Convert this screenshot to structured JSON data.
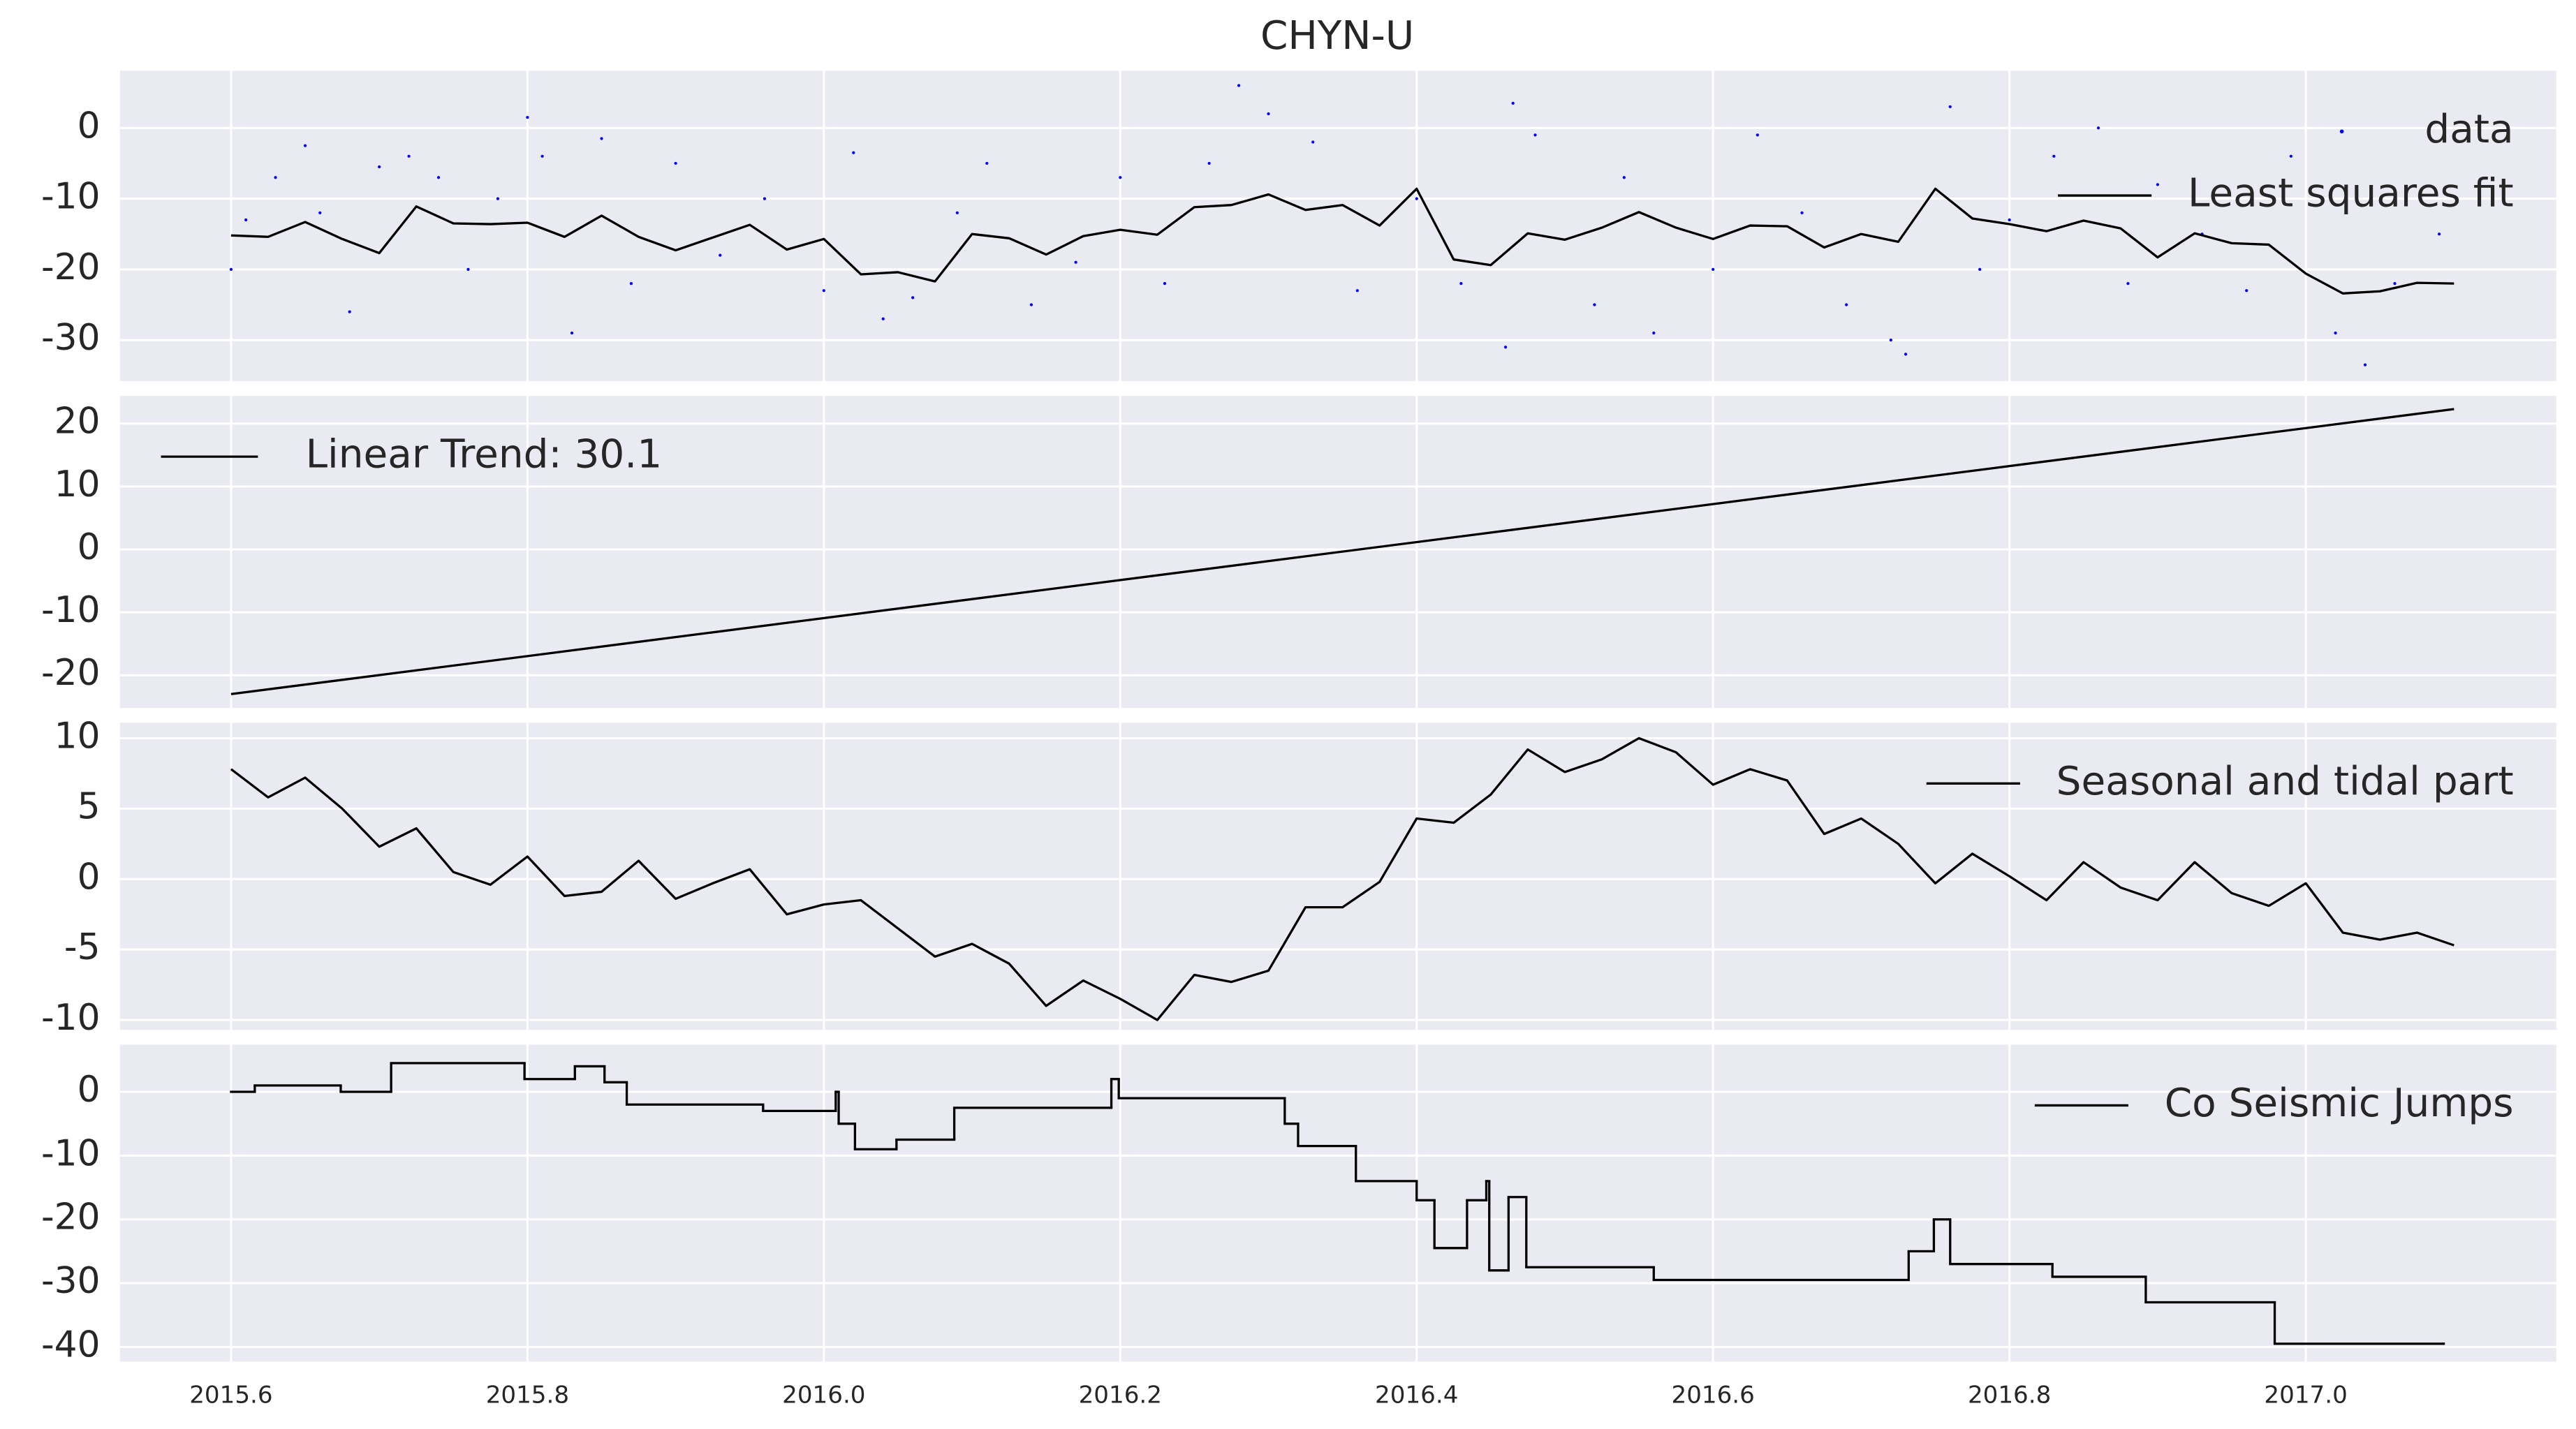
{
  "chart_data": [
    {
      "type": "line",
      "title": "CHYN-U",
      "ylim": [
        -35.8,
        8.1
      ],
      "yticks": [
        -30,
        -20,
        -10,
        0
      ],
      "grid": true,
      "legend": "upper right",
      "series": [
        {
          "name": "data",
          "color": "#0000ff",
          "style": "points",
          "x": [
            2015.6,
            2015.61,
            2015.63,
            2015.65,
            2015.66,
            2015.68,
            2015.7,
            2015.72,
            2015.74,
            2015.76,
            2015.78,
            2015.8,
            2015.81,
            2015.83,
            2015.85,
            2015.87,
            2015.9,
            2015.93,
            2015.96,
            2016.0,
            2016.02,
            2016.04,
            2016.06,
            2016.09,
            2016.11,
            2016.14,
            2016.17,
            2016.2,
            2016.23,
            2016.26,
            2016.28,
            2016.3,
            2016.33,
            2016.36,
            2016.4,
            2016.43,
            2016.46,
            2016.465,
            2016.48,
            2016.52,
            2016.54,
            2016.56,
            2016.6,
            2016.63,
            2016.66,
            2016.69,
            2016.72,
            2016.73,
            2016.76,
            2016.78,
            2016.8,
            2016.83,
            2016.86,
            2016.88,
            2016.9,
            2016.93,
            2016.96,
            2016.99,
            2017.02,
            2017.04,
            2017.06,
            2017.09
          ],
          "values": [
            -20,
            -13,
            -7,
            -2.5,
            -12,
            -26,
            -5.5,
            -4,
            -7,
            -20,
            -10,
            1.5,
            -4,
            -29,
            -1.5,
            -22,
            -5,
            -18,
            -10,
            -23,
            -3.5,
            -27,
            -24,
            -12,
            -5,
            -25,
            -19,
            -7,
            -22,
            -5,
            6,
            2,
            -2,
            -23,
            -10,
            -22,
            -31,
            3.5,
            -1,
            -25,
            -7,
            -29,
            -20,
            -1,
            -12,
            -25,
            -30,
            -32,
            3,
            -20,
            -13,
            -4,
            0,
            -22,
            -8,
            -15,
            -23,
            -4,
            -29,
            -33.5,
            -22,
            -15
          ]
        },
        {
          "name": "Least squares fit",
          "color": "#000000",
          "style": "line",
          "x": [
            2015.6,
            2015.625,
            2015.65,
            2015.675,
            2015.7,
            2015.725,
            2015.75,
            2015.775,
            2015.8,
            2015.825,
            2015.85,
            2015.875,
            2015.9,
            2015.925,
            2015.95,
            2015.975,
            2016.0,
            2016.025,
            2016.05,
            2016.075,
            2016.1,
            2016.125,
            2016.15,
            2016.175,
            2016.2,
            2016.225,
            2016.25,
            2016.275,
            2016.3,
            2016.325,
            2016.35,
            2016.375,
            2016.4,
            2016.425,
            2016.45,
            2016.475,
            2016.5,
            2016.525,
            2016.55,
            2016.575,
            2016.6,
            2016.625,
            2016.65,
            2016.675,
            2016.7,
            2016.725,
            2016.75,
            2016.775,
            2016.8,
            2016.825,
            2016.85,
            2016.875,
            2016.9,
            2016.925,
            2016.95,
            2016.975,
            2017.0,
            2017.025,
            2017.05,
            2017.075,
            2017.1
          ],
          "values": [
            -15.2,
            -15.4,
            -13.3,
            -15.7,
            -17.7,
            -11.1,
            -13.5,
            -13.6,
            -13.4,
            -15.4,
            -12.4,
            -15.4,
            -17.3,
            -15.5,
            -13.7,
            -17.2,
            -15.7,
            -20.7,
            -20.4,
            -21.7,
            -15,
            -15.6,
            -17.9,
            -15.3,
            -14.4,
            -15.1,
            -11.2,
            -10.9,
            -9.4,
            -11.6,
            -10.9,
            -13.8,
            -8.6,
            -18.6,
            -19.4,
            -14.9,
            -15.8,
            -14.1,
            -11.9,
            -14.1,
            -15.7,
            -13.8,
            -13.9,
            -16.9,
            -15,
            -16.1,
            -8.6,
            -12.8,
            -13.6,
            -14.6,
            -13.1,
            -14.2,
            -18.3,
            -14.9,
            -16.3,
            -16.5,
            -20.6,
            -23.4,
            -23.1,
            -21.9,
            -22
          ]
        }
      ]
    },
    {
      "type": "line",
      "ylim": [
        -25.2,
        24.4
      ],
      "yticks": [
        -20,
        -10,
        0,
        10,
        20
      ],
      "grid": true,
      "legend": "upper left",
      "series": [
        {
          "name": "Linear Trend: 30.1",
          "color": "#000000",
          "style": "line",
          "x": [
            2015.6,
            2017.1
          ],
          "values": [
            -23,
            22.3
          ]
        }
      ]
    },
    {
      "type": "line",
      "ylim": [
        -10.7,
        11.1
      ],
      "yticks": [
        -10,
        -5,
        0,
        5,
        10
      ],
      "grid": true,
      "legend": "upper right",
      "series": [
        {
          "name": "Seasonal and tidal part",
          "color": "#000000",
          "style": "line",
          "x": [
            2015.6,
            2015.625,
            2015.65,
            2015.675,
            2015.7,
            2015.725,
            2015.75,
            2015.775,
            2015.8,
            2015.825,
            2015.85,
            2015.875,
            2015.9,
            2015.925,
            2015.95,
            2015.975,
            2016.0,
            2016.025,
            2016.05,
            2016.075,
            2016.1,
            2016.125,
            2016.15,
            2016.175,
            2016.2,
            2016.225,
            2016.25,
            2016.275,
            2016.3,
            2016.325,
            2016.35,
            2016.375,
            2016.4,
            2016.425,
            2016.45,
            2016.475,
            2016.5,
            2016.525,
            2016.55,
            2016.575,
            2016.6,
            2016.625,
            2016.65,
            2016.675,
            2016.7,
            2016.725,
            2016.75,
            2016.775,
            2016.8,
            2016.825,
            2016.85,
            2016.875,
            2016.9,
            2016.925,
            2016.95,
            2016.975,
            2017.0,
            2017.025,
            2017.05,
            2017.075,
            2017.1
          ],
          "values": [
            7.8,
            5.8,
            7.2,
            5,
            2.3,
            3.6,
            0.5,
            -0.4,
            1.6,
            -1.2,
            -0.9,
            1.3,
            -1.4,
            -0.3,
            0.7,
            -2.5,
            -1.8,
            -1.5,
            -3.5,
            -5.5,
            -4.6,
            -6,
            -9,
            -7.2,
            -8.5,
            -10,
            -6.8,
            -7.3,
            -6.5,
            -2,
            -2,
            -0.2,
            4.3,
            4,
            6,
            9.2,
            7.6,
            8.5,
            10,
            9,
            6.7,
            7.8,
            7,
            3.2,
            4.3,
            2.5,
            -0.3,
            1.8,
            0.2,
            -1.5,
            1.2,
            -0.6,
            -1.5,
            1.2,
            -1,
            -1.9,
            -0.3,
            -3.8,
            -4.3,
            -3.8,
            -4.7
          ]
        }
      ]
    },
    {
      "type": "line",
      "ylim": [
        -42.3,
        7.4
      ],
      "yticks": [
        -40,
        -30,
        -20,
        -10,
        0
      ],
      "grid": true,
      "legend": "upper right",
      "xlim": [
        2015.525,
        2017.169
      ],
      "xticks": [
        2015.6,
        2015.8,
        {
          "value": 2016,
          "label": "2016.0"
        },
        2016.2,
        2016.4,
        2016.6,
        2016.8,
        {
          "value": 2017,
          "label": "2017.0"
        }
      ],
      "series": [
        {
          "name": "Co Seismic Jumps",
          "color": "#000000",
          "style": "steps",
          "x": [
            2015.6,
            2015.616,
            2015.674,
            2015.708,
            2015.798,
            2015.832,
            2015.852,
            2015.867,
            2015.959,
            2016.008,
            2016.01,
            2016.021,
            2016.049,
            2016.088,
            2016.194,
            2016.199,
            2016.311,
            2016.32,
            2016.359,
            2016.4,
            2016.412,
            2016.434,
            2016.447,
            2016.449,
            2016.462,
            2016.474,
            2016.56,
            2016.732,
            2016.749,
            2016.76,
            2016.829,
            2016.892,
            2016.979,
            2017.093
          ],
          "values": [
            0,
            1,
            0,
            4.5,
            2,
            4,
            1.5,
            -2,
            -3,
            0,
            -5,
            -9,
            -7.5,
            -2.5,
            2,
            -1,
            -5,
            -8.5,
            -14,
            -17,
            -24.5,
            -17,
            -14,
            -28,
            -16.5,
            -27.5,
            -29.5,
            -25,
            -20,
            -27,
            -29,
            -33,
            -39.5,
            -39.5
          ]
        }
      ]
    }
  ]
}
